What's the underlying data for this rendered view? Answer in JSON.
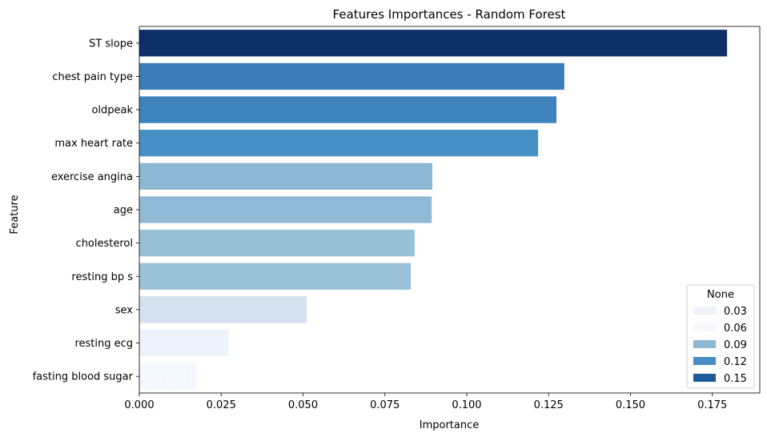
{
  "chart_data": {
    "type": "bar",
    "orientation": "horizontal",
    "title": "Features Importances - Random Forest",
    "xlabel": "Importance",
    "ylabel": "Feature",
    "categories": [
      "ST slope",
      "chest pain type",
      "oldpeak",
      "max heart rate",
      "exercise angina",
      "age",
      "cholesterol",
      "resting bp s",
      "sex",
      "resting ecg",
      "fasting blood sugar"
    ],
    "values": [
      0.1795,
      0.1298,
      0.1274,
      0.1218,
      0.0895,
      0.0893,
      0.0841,
      0.0829,
      0.0511,
      0.0273,
      0.0175
    ],
    "bar_colors": [
      "#0f2f69",
      "#3a7db8",
      "#3e83bc",
      "#4690c5",
      "#8db8d4",
      "#8fb9d4",
      "#98c1d7",
      "#9ac2d8",
      "#d4e1ef",
      "#edf3fa",
      "#f5f8fd"
    ],
    "xlim": [
      0,
      0.1895
    ],
    "xticks": [
      "0.000",
      "0.025",
      "0.050",
      "0.075",
      "0.100",
      "0.125",
      "0.150",
      "0.175"
    ],
    "xtick_values": [
      0,
      0.025,
      0.05,
      0.075,
      0.1,
      0.125,
      0.15,
      0.175
    ],
    "grid": false,
    "legend": {
      "title": "None",
      "placement": "lower-right",
      "entries": [
        {
          "label": "0.03",
          "color": "#eef3fa"
        },
        {
          "label": "0.06",
          "color": "#c8dbed"
        },
        {
          "label": "0.09",
          "color": "#8db8d4"
        },
        {
          "label": "0.12",
          "color": "#4a8cc3"
        },
        {
          "label": "0.15",
          "color": "#1c5a9a"
        }
      ]
    }
  }
}
